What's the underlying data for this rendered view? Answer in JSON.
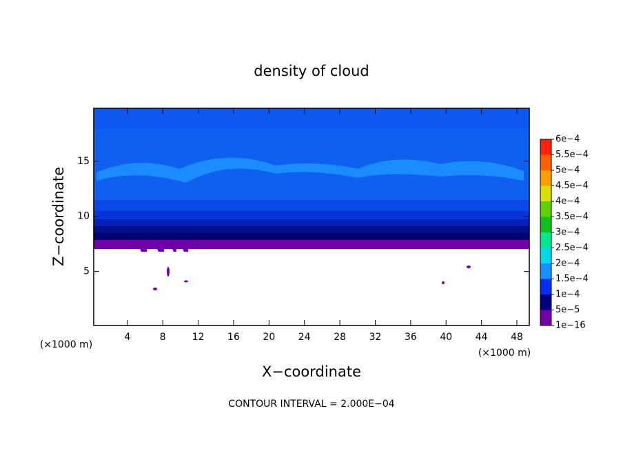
{
  "chart_data": {
    "type": "contour",
    "title": "density of cloud",
    "x_label": "X−coordinate",
    "y_label": "Z−coordinate",
    "x_unit_labels": [
      "(×1000 m)",
      "(×1000 m)"
    ],
    "footnote": "CONTOUR INTERVAL = 2.000E−04",
    "xlim": [
      0.2,
      49.4
    ],
    "xticks": [
      4,
      8,
      12,
      16,
      20,
      24,
      28,
      32,
      36,
      40,
      44,
      48
    ],
    "ylim": [
      0.1,
      19.8
    ],
    "yticks": [
      5,
      10,
      15
    ],
    "colorbar": {
      "levels": [
        {
          "value": 1e-16,
          "label": "1e−16"
        },
        {
          "value": 5e-05,
          "label": "5e−5"
        },
        {
          "value": 0.0001,
          "label": "1e−4"
        },
        {
          "value": 0.00015,
          "label": "1.5e−4"
        },
        {
          "value": 0.0002,
          "label": "2e−4"
        },
        {
          "value": 0.00025,
          "label": "2.5e−4"
        },
        {
          "value": 0.0003,
          "label": "3e−4"
        },
        {
          "value": 0.00035,
          "label": "3.5e−4"
        },
        {
          "value": 0.0004,
          "label": "4e−4"
        },
        {
          "value": 0.00045,
          "label": "4.5e−4"
        },
        {
          "value": 0.0005,
          "label": "5e−4"
        },
        {
          "value": 0.00055,
          "label": "5.5e−4"
        },
        {
          "value": 0.0006,
          "label": "6e−4"
        }
      ],
      "colors": [
        "#7000a8",
        "#000080",
        "#0030f0",
        "#1890ff",
        "#00d8e8",
        "#00e890",
        "#10c020",
        "#60d000",
        "#d8e000",
        "#ffa000",
        "#ff6000",
        "#ff2010",
        "#ff8080"
      ]
    }
  }
}
